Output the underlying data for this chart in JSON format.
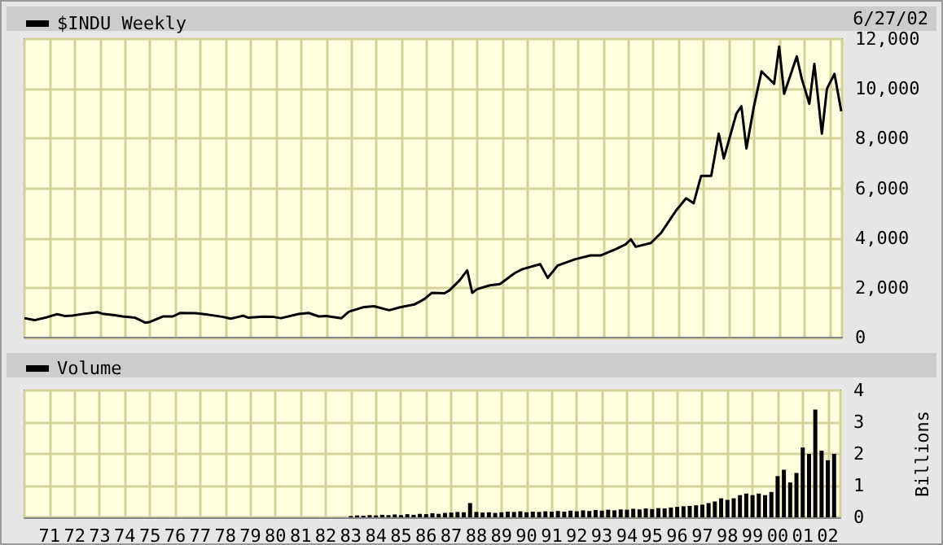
{
  "chart_data": [
    {
      "type": "line",
      "annotations": [
        "6/27/02"
      ],
      "legend": "top left",
      "grid": true,
      "tick_labels": "y",
      "marker": "none",
      "line_style": "solid",
      "xlim": [
        1970,
        2002.5
      ],
      "xticks": [
        {
          "value": 1971,
          "label": null
        },
        {
          "value": 1972,
          "label": null
        },
        {
          "value": 1973,
          "label": null
        },
        {
          "value": 1974,
          "label": null
        },
        {
          "value": 1975,
          "label": null
        },
        {
          "value": 1976,
          "label": null
        },
        {
          "value": 1977,
          "label": null
        },
        {
          "value": 1978,
          "label": null
        },
        {
          "value": 1979,
          "label": null
        },
        {
          "value": 1980,
          "label": null
        },
        {
          "value": 1981,
          "label": null
        },
        {
          "value": 1982,
          "label": null
        },
        {
          "value": 1983,
          "label": null
        },
        {
          "value": 1984,
          "label": null
        },
        {
          "value": 1985,
          "label": null
        },
        {
          "value": 1986,
          "label": null
        },
        {
          "value": 1987,
          "label": null
        },
        {
          "value": 1988,
          "label": null
        },
        {
          "value": 1989,
          "label": null
        },
        {
          "value": 1990,
          "label": null
        },
        {
          "value": 1991,
          "label": null
        },
        {
          "value": 1992,
          "label": null
        },
        {
          "value": 1993,
          "label": null
        },
        {
          "value": 1994,
          "label": null
        },
        {
          "value": 1995,
          "label": null
        },
        {
          "value": 1996,
          "label": null
        },
        {
          "value": 1997,
          "label": null
        },
        {
          "value": 1998,
          "label": null
        },
        {
          "value": 1999,
          "label": null
        },
        {
          "value": 2000,
          "label": null
        },
        {
          "value": 2001,
          "label": null
        },
        {
          "value": 2002,
          "label": null
        }
      ],
      "ylim": [
        0,
        12000
      ],
      "yticks": [
        {
          "value": 0,
          "label": "0"
        },
        {
          "value": 2000,
          "label": "2,000"
        },
        {
          "value": 4000,
          "label": "4,000"
        },
        {
          "value": 6000,
          "label": "6,000"
        },
        {
          "value": 8000,
          "label": "8,000"
        },
        {
          "value": 10000,
          "label": "10,000"
        },
        {
          "value": 12000,
          "label": "12,000"
        }
      ],
      "series": [
        {
          "name": "$INDU Weekly",
          "color": "#000000",
          "x": [
            1970.0,
            1970.4,
            1970.9,
            1971.3,
            1971.6,
            1971.9,
            1972.4,
            1972.9,
            1973.1,
            1973.6,
            1973.9,
            1974.4,
            1974.8,
            1975.0,
            1975.5,
            1975.9,
            1976.2,
            1976.8,
            1977.3,
            1977.9,
            1978.2,
            1978.7,
            1978.9,
            1979.5,
            1979.9,
            1980.2,
            1980.9,
            1981.3,
            1981.7,
            1982.0,
            1982.6,
            1982.9,
            1983.5,
            1983.9,
            1984.5,
            1984.9,
            1985.5,
            1985.9,
            1986.2,
            1986.7,
            1986.9,
            1987.3,
            1987.6,
            1987.8,
            1988.0,
            1988.5,
            1988.9,
            1989.5,
            1989.8,
            1990.5,
            1990.8,
            1991.2,
            1991.9,
            1992.5,
            1992.9,
            1993.5,
            1993.9,
            1994.1,
            1994.3,
            1994.9,
            1995.3,
            1995.9,
            1996.3,
            1996.6,
            1996.9,
            1997.3,
            1997.6,
            1997.8,
            1998.3,
            1998.5,
            1998.7,
            1999.0,
            1999.3,
            1999.8,
            2000.0,
            2000.2,
            2000.7,
            2000.9,
            2001.2,
            2001.4,
            2001.7,
            2001.9,
            2002.2,
            2002.47
          ],
          "values": [
            780,
            700,
            820,
            940,
            870,
            880,
            960,
            1020,
            960,
            900,
            850,
            800,
            600,
            630,
            850,
            850,
            990,
            980,
            920,
            830,
            760,
            880,
            800,
            840,
            830,
            780,
            950,
            990,
            850,
            870,
            780,
            1040,
            1230,
            1260,
            1100,
            1210,
            1330,
            1550,
            1800,
            1780,
            1900,
            2300,
            2700,
            1800,
            1950,
            2100,
            2150,
            2600,
            2750,
            2950,
            2400,
            2900,
            3150,
            3300,
            3300,
            3550,
            3750,
            3950,
            3650,
            3800,
            4200,
            5100,
            5600,
            5400,
            6500,
            6500,
            8200,
            7200,
            9000,
            9300,
            7600,
            9300,
            10700,
            10200,
            11700,
            9800,
            11300,
            10400,
            9400,
            11000,
            8200,
            10000,
            10600,
            9100
          ]
        }
      ]
    },
    {
      "type": "bar",
      "legend": "top left",
      "grid": true,
      "ylabel": "Billions",
      "xlim": [
        1970,
        2002.5
      ],
      "xticks": [
        {
          "value": 1971,
          "label": "71"
        },
        {
          "value": 1972,
          "label": "72"
        },
        {
          "value": 1973,
          "label": "73"
        },
        {
          "value": 1974,
          "label": "74"
        },
        {
          "value": 1975,
          "label": "75"
        },
        {
          "value": 1976,
          "label": "76"
        },
        {
          "value": 1977,
          "label": "77"
        },
        {
          "value": 1978,
          "label": "78"
        },
        {
          "value": 1979,
          "label": "79"
        },
        {
          "value": 1980,
          "label": "80"
        },
        {
          "value": 1981,
          "label": "81"
        },
        {
          "value": 1982,
          "label": "82"
        },
        {
          "value": 1983,
          "label": "83"
        },
        {
          "value": 1984,
          "label": "84"
        },
        {
          "value": 1985,
          "label": "85"
        },
        {
          "value": 1986,
          "label": "86"
        },
        {
          "value": 1987,
          "label": "87"
        },
        {
          "value": 1988,
          "label": "88"
        },
        {
          "value": 1989,
          "label": "89"
        },
        {
          "value": 1990,
          "label": "90"
        },
        {
          "value": 1991,
          "label": "91"
        },
        {
          "value": 1992,
          "label": "92"
        },
        {
          "value": 1993,
          "label": "93"
        },
        {
          "value": 1994,
          "label": "94"
        },
        {
          "value": 1995,
          "label": "95"
        },
        {
          "value": 1996,
          "label": "96"
        },
        {
          "value": 1997,
          "label": "97"
        },
        {
          "value": 1998,
          "label": "98"
        },
        {
          "value": 1999,
          "label": "99"
        },
        {
          "value": 2000,
          "label": "00"
        },
        {
          "value": 2001,
          "label": "01"
        },
        {
          "value": 2002,
          "label": "02"
        }
      ],
      "ylim": [
        0,
        4
      ],
      "yticks": [
        0,
        1,
        2,
        3,
        4
      ],
      "series": [
        {
          "name": "Volume",
          "color": "#000000",
          "x": [
            1983.0,
            1983.25,
            1983.5,
            1983.75,
            1984.0,
            1984.25,
            1984.5,
            1984.75,
            1985.0,
            1985.25,
            1985.5,
            1985.75,
            1986.0,
            1986.25,
            1986.5,
            1986.75,
            1987.0,
            1987.25,
            1987.5,
            1987.75,
            1988.0,
            1988.25,
            1988.5,
            1988.75,
            1989.0,
            1989.25,
            1989.5,
            1989.75,
            1990.0,
            1990.25,
            1990.5,
            1990.75,
            1991.0,
            1991.25,
            1991.5,
            1991.75,
            1992.0,
            1992.25,
            1992.5,
            1992.75,
            1993.0,
            1993.25,
            1993.5,
            1993.75,
            1994.0,
            1994.25,
            1994.5,
            1994.75,
            1995.0,
            1995.25,
            1995.5,
            1995.75,
            1996.0,
            1996.25,
            1996.5,
            1996.75,
            1997.0,
            1997.25,
            1997.5,
            1997.75,
            1998.0,
            1998.25,
            1998.5,
            1998.75,
            1999.0,
            1999.25,
            1999.5,
            1999.75,
            2000.0,
            2000.25,
            2000.5,
            2000.75,
            2001.0,
            2001.25,
            2001.5,
            2001.75,
            2002.0,
            2002.25
          ],
          "values": [
            0.04,
            0.06,
            0.05,
            0.07,
            0.06,
            0.08,
            0.07,
            0.09,
            0.07,
            0.1,
            0.08,
            0.11,
            0.1,
            0.13,
            0.11,
            0.14,
            0.15,
            0.17,
            0.16,
            0.45,
            0.17,
            0.15,
            0.16,
            0.14,
            0.16,
            0.18,
            0.17,
            0.19,
            0.16,
            0.18,
            0.17,
            0.19,
            0.18,
            0.2,
            0.18,
            0.21,
            0.19,
            0.22,
            0.2,
            0.23,
            0.21,
            0.24,
            0.22,
            0.25,
            0.24,
            0.27,
            0.25,
            0.28,
            0.26,
            0.29,
            0.28,
            0.31,
            0.33,
            0.35,
            0.36,
            0.38,
            0.4,
            0.45,
            0.5,
            0.6,
            0.55,
            0.6,
            0.7,
            0.75,
            0.7,
            0.75,
            0.7,
            0.8,
            1.3,
            1.5,
            1.1,
            1.4,
            2.2,
            2.0,
            3.4,
            2.1,
            1.8,
            2.0
          ]
        }
      ]
    }
  ]
}
